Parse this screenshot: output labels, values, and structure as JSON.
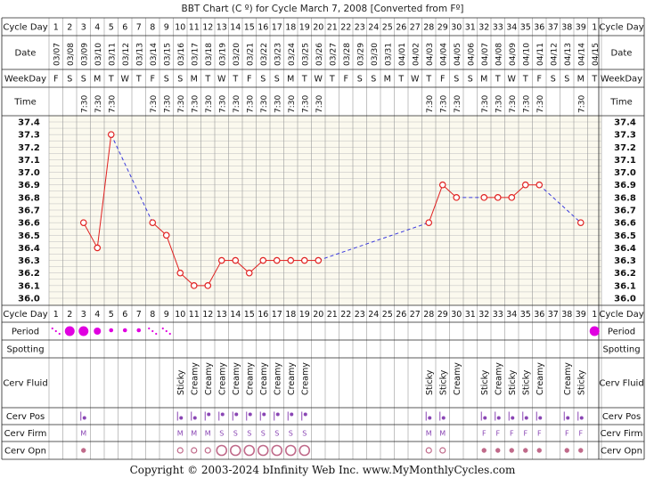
{
  "chart_data": {
    "type": "line",
    "title": "BBT Chart (C º) for Cycle March 7, 2008  [Converted from Fº]",
    "row_labels": {
      "cycle_day": "Cycle Day",
      "date": "Date",
      "weekday": "WeekDay",
      "time": "Time",
      "period": "Period",
      "spotting": "Spotting",
      "cerv_fluid": "Cerv Fluid",
      "cerv_pos": "Cerv Pos",
      "cerv_firm": "Cerv Firm",
      "cerv_opn": "Cerv Opn"
    },
    "cycle_days": [
      1,
      2,
      3,
      4,
      5,
      6,
      7,
      8,
      9,
      10,
      11,
      12,
      13,
      14,
      15,
      16,
      17,
      18,
      19,
      20,
      21,
      22,
      23,
      24,
      25,
      26,
      27,
      28,
      29,
      30,
      31,
      32,
      33,
      34,
      35,
      36,
      37,
      38,
      39,
      1
    ],
    "dates": [
      "03/07",
      "03/08",
      "03/09",
      "03/10",
      "03/11",
      "03/12",
      "03/13",
      "03/14",
      "03/15",
      "03/16",
      "03/17",
      "03/18",
      "03/19",
      "03/20",
      "03/21",
      "03/22",
      "03/23",
      "03/24",
      "03/25",
      "03/26",
      "03/27",
      "03/28",
      "03/29",
      "03/30",
      "03/31",
      "04/01",
      "04/02",
      "04/03",
      "04/04",
      "04/05",
      "04/06",
      "04/07",
      "04/08",
      "04/09",
      "04/10",
      "04/11",
      "04/12",
      "04/13",
      "04/14",
      "04/15"
    ],
    "weekdays": [
      "F",
      "S",
      "S",
      "M",
      "T",
      "W",
      "T",
      "F",
      "S",
      "S",
      "M",
      "T",
      "W",
      "T",
      "F",
      "S",
      "S",
      "M",
      "T",
      "W",
      "T",
      "F",
      "S",
      "S",
      "M",
      "T",
      "W",
      "T",
      "F",
      "S",
      "S",
      "M",
      "T",
      "W",
      "T",
      "F",
      "S",
      "S",
      "M",
      "T"
    ],
    "times": [
      "",
      "",
      "7:30",
      "7:30",
      "7:30",
      "",
      "",
      "7:30",
      "7:30",
      "7:30",
      "7:30",
      "7:30",
      "7:30",
      "7:30",
      "7:30",
      "7:30",
      "7:30",
      "7:30",
      "7:30",
      "7:30",
      "",
      "",
      "",
      "",
      "",
      "",
      "",
      "7:30",
      "7:30",
      "7:30",
      "",
      "7:30",
      "7:30",
      "7:30",
      "7:30",
      "7:30",
      "",
      "",
      "7:30",
      ""
    ],
    "temperatures": [
      null,
      null,
      36.6,
      36.4,
      37.3,
      null,
      null,
      36.6,
      36.5,
      36.2,
      36.1,
      36.1,
      36.3,
      36.3,
      36.2,
      36.3,
      36.3,
      36.3,
      36.3,
      36.3,
      null,
      null,
      null,
      null,
      null,
      null,
      null,
      36.6,
      36.9,
      36.8,
      null,
      36.8,
      36.8,
      36.8,
      36.9,
      36.9,
      null,
      null,
      36.6,
      null
    ],
    "y_ticks": [
      "37.4",
      "37.3",
      "37.2",
      "37.1",
      "37.0",
      "36.9",
      "36.8",
      "36.7",
      "36.6",
      "36.5",
      "36.4",
      "36.3",
      "36.2",
      "36.1",
      "36.0"
    ],
    "ylim": [
      36.0,
      37.4
    ],
    "period": [
      "light",
      "heavy",
      "heavy",
      "medium",
      "small",
      "small",
      "small",
      "light",
      "light",
      "",
      "",
      "",
      "",
      "",
      "",
      "",
      "",
      "",
      "",
      "",
      "",
      "",
      "",
      "",
      "",
      "",
      "",
      "",
      "",
      "",
      "",
      "",
      "",
      "",
      "",
      "",
      "",
      "",
      "",
      "heavy"
    ],
    "spotting": [],
    "cerv_fluid": [
      "",
      "",
      "",
      "",
      "",
      "",
      "",
      "",
      "",
      "Sticky",
      "Creamy",
      "Creamy",
      "Creamy",
      "Creamy",
      "Creamy",
      "Creamy",
      "Creamy",
      "Creamy",
      "Creamy",
      "",
      "",
      "",
      "",
      "",
      "",
      "",
      "",
      "Sticky",
      "Sticky",
      "Creamy",
      "",
      "Sticky",
      "Creamy",
      "Sticky",
      "Sticky",
      "Creamy",
      "",
      "Creamy",
      "Sticky",
      ""
    ],
    "cerv_pos": [
      "",
      "",
      "low",
      "",
      "",
      "",
      "",
      "",
      "",
      "low",
      "low",
      "med",
      "med",
      "med",
      "med",
      "med",
      "med",
      "med",
      "med",
      "",
      "",
      "",
      "",
      "",
      "",
      "",
      "",
      "low",
      "low",
      "",
      "",
      "low",
      "low",
      "low",
      "low",
      "low",
      "",
      "low",
      "low",
      ""
    ],
    "cerv_firm": [
      "",
      "",
      "M",
      "",
      "",
      "",
      "",
      "",
      "",
      "M",
      "M",
      "M",
      "S",
      "S",
      "S",
      "S",
      "S",
      "S",
      "S",
      "",
      "",
      "",
      "",
      "",
      "",
      "",
      "",
      "M",
      "M",
      "",
      "",
      "F",
      "F",
      "F",
      "F",
      "F",
      "",
      "F",
      "F",
      ""
    ],
    "cerv_opn": [
      "",
      "",
      "closed",
      "",
      "",
      "",
      "",
      "",
      "",
      "semi",
      "semi",
      "semi",
      "open",
      "open",
      "open",
      "open",
      "open",
      "open",
      "open",
      "",
      "",
      "",
      "",
      "",
      "",
      "",
      "",
      "semi",
      "semi",
      "",
      "",
      "closed",
      "closed",
      "closed",
      "closed",
      "closed",
      "",
      "closed",
      "closed",
      ""
    ],
    "copyright": "Copyright © 2003-2024 bInfinity Web Inc.     www.MyMonthlyCycles.com"
  }
}
